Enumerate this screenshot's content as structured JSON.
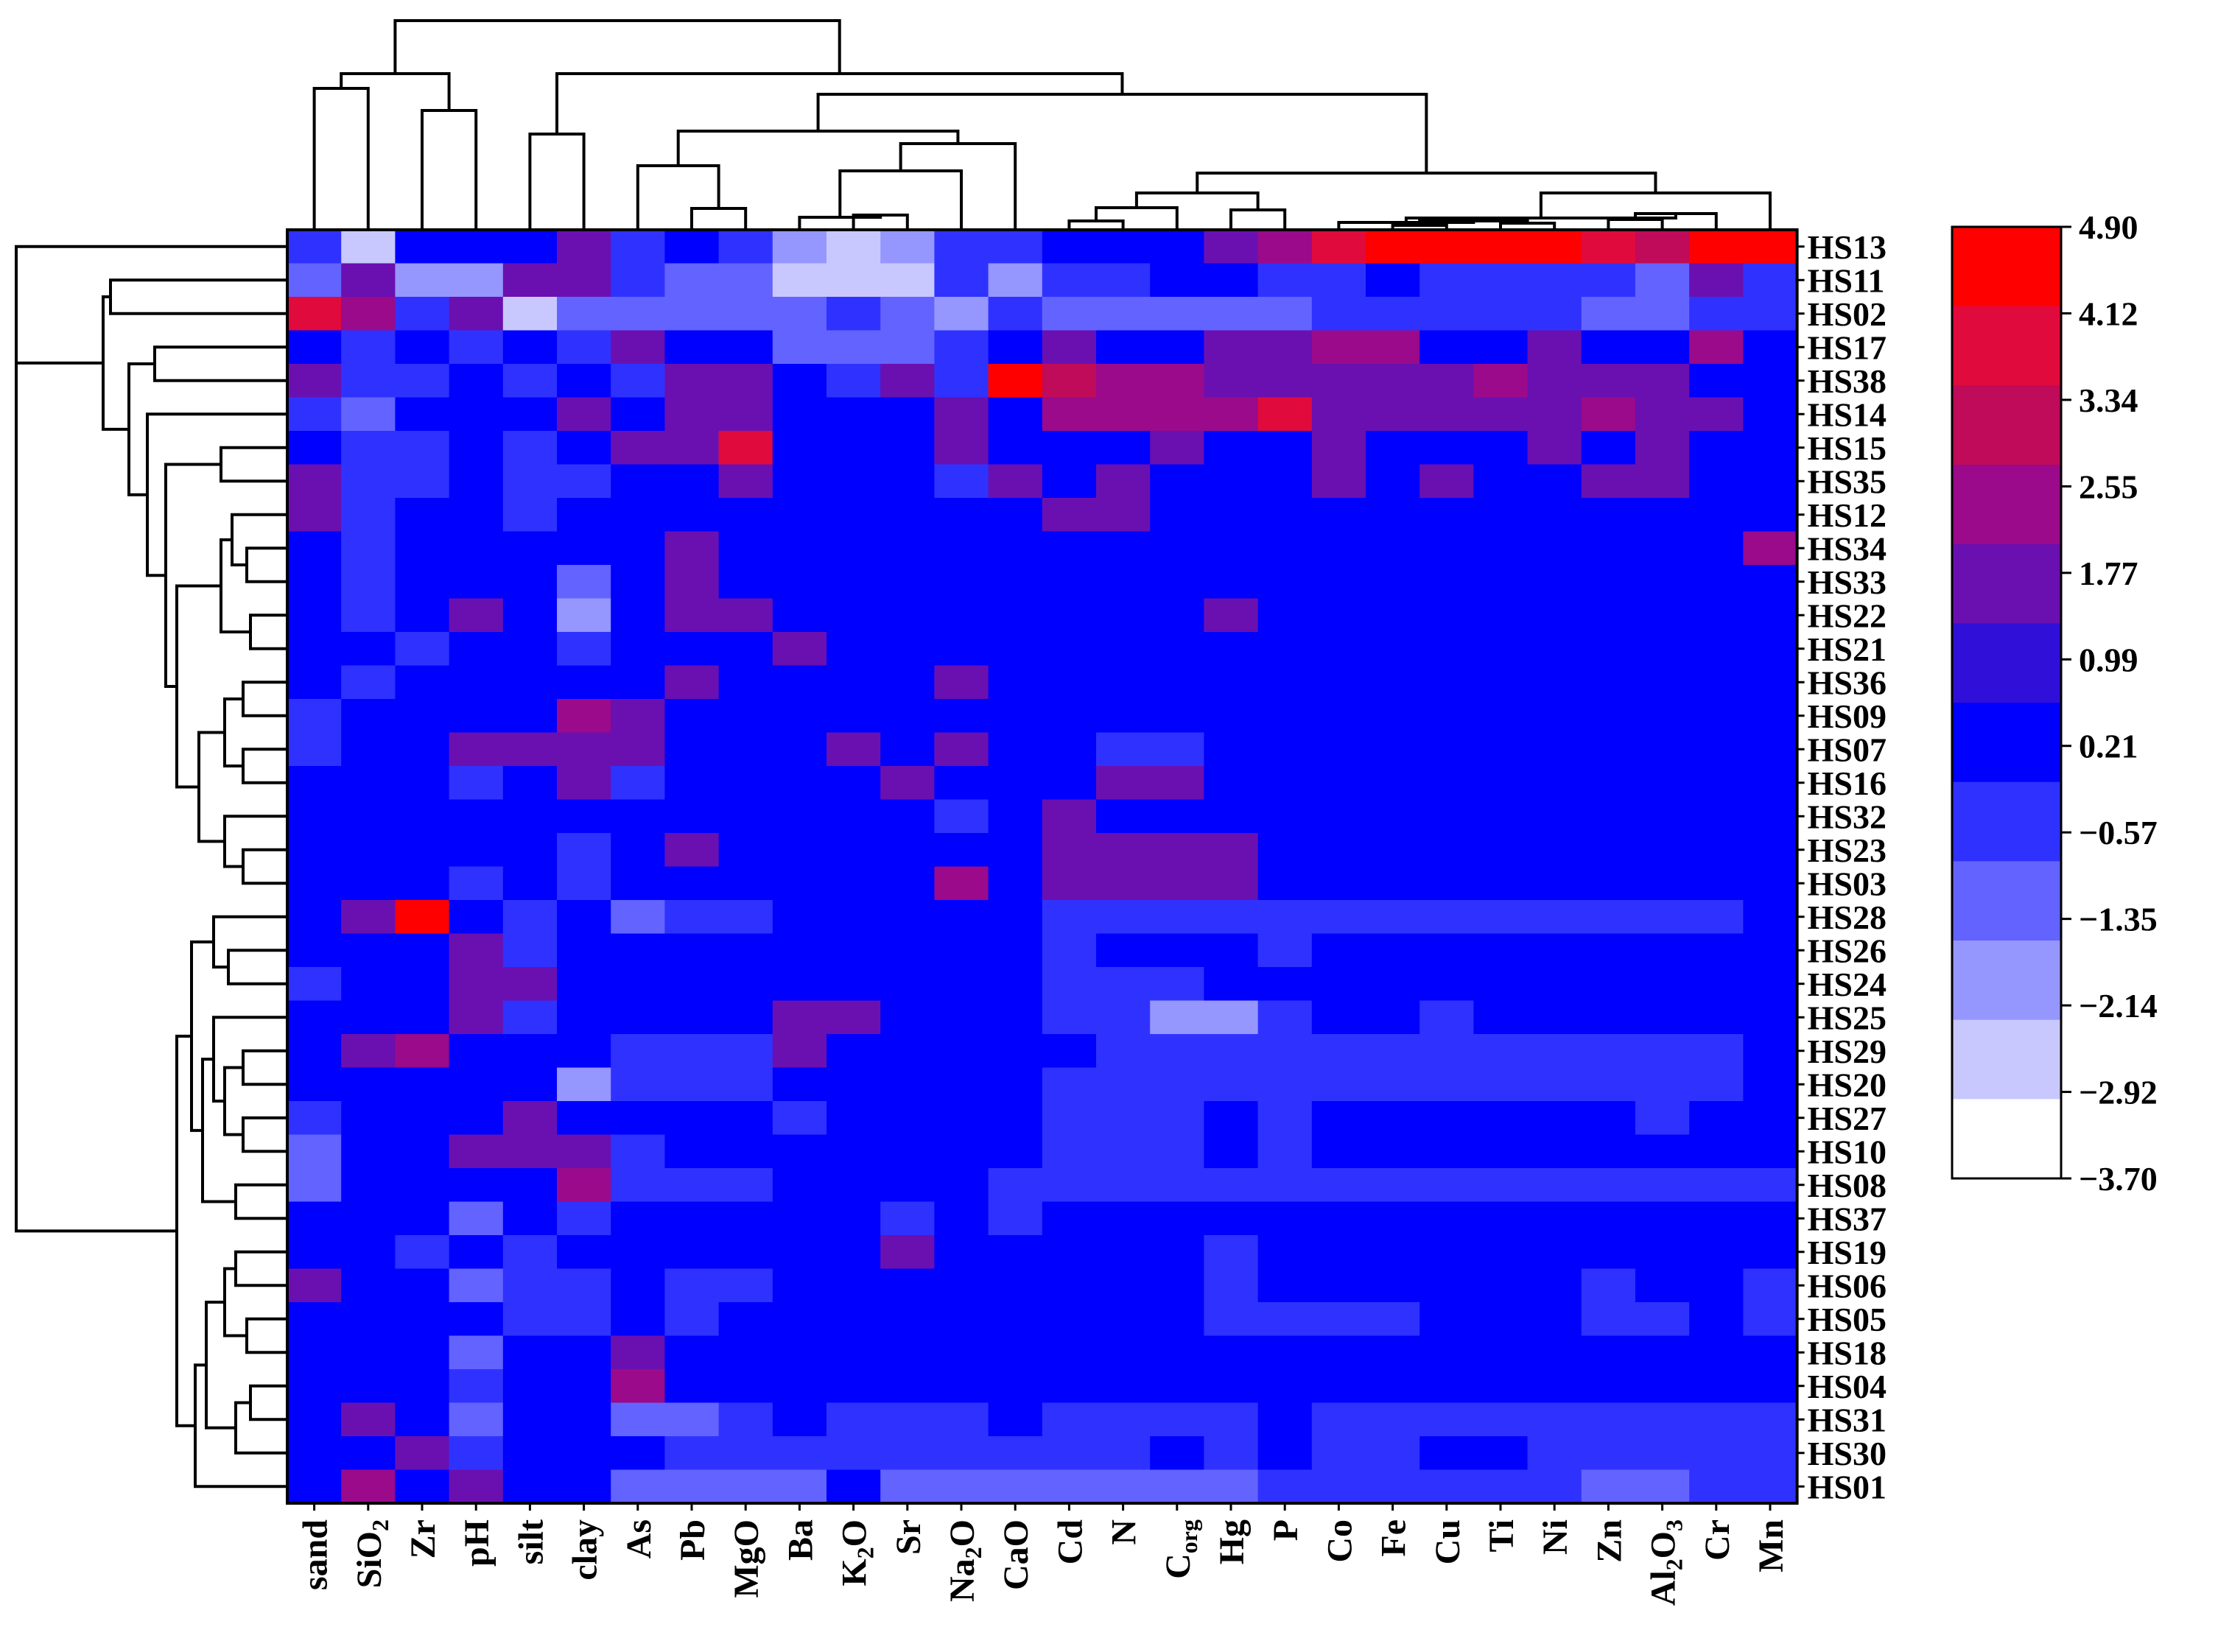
{
  "chart_data": {
    "type": "heatmap",
    "title": "",
    "columns": [
      {
        "label": "sand"
      },
      {
        "label": "SiO",
        "sub": "2"
      },
      {
        "label": "Zr"
      },
      {
        "label": "pH"
      },
      {
        "label": "silt"
      },
      {
        "label": "clay"
      },
      {
        "label": "As"
      },
      {
        "label": "Pb"
      },
      {
        "label": "MgO"
      },
      {
        "label": "Ba"
      },
      {
        "label": "K",
        "sub": "2",
        "tail": "O"
      },
      {
        "label": "Sr"
      },
      {
        "label": "Na",
        "sub": "2",
        "tail": "O"
      },
      {
        "label": "CaO"
      },
      {
        "label": "Cd"
      },
      {
        "label": "N"
      },
      {
        "label": "C",
        "sub": "org"
      },
      {
        "label": "Hg"
      },
      {
        "label": "P"
      },
      {
        "label": "Co"
      },
      {
        "label": "Fe"
      },
      {
        "label": "Cu"
      },
      {
        "label": "Ti"
      },
      {
        "label": "Ni"
      },
      {
        "label": "Zn"
      },
      {
        "label": "Al",
        "sub": "2",
        "tail": "O",
        "sub2": "3"
      },
      {
        "label": "Cr"
      },
      {
        "label": "Mn"
      }
    ],
    "rows": [
      "HS13",
      "HS11",
      "HS02",
      "HS17",
      "HS38",
      "HS14",
      "HS15",
      "HS35",
      "HS12",
      "HS34",
      "HS33",
      "HS22",
      "HS21",
      "HS36",
      "HS09",
      "HS07",
      "HS16",
      "HS32",
      "HS23",
      "HS03",
      "HS28",
      "HS26",
      "HS24",
      "HS25",
      "HS29",
      "HS20",
      "HS27",
      "HS10",
      "HS08",
      "HS37",
      "HS19",
      "HS06",
      "HS05",
      "HS18",
      "HS04",
      "HS31",
      "HS30",
      "HS01"
    ],
    "values": [
      [
        -1,
        -3.7,
        -0.5,
        0.2,
        0.2,
        1.4,
        -1,
        -0.5,
        -1,
        -2.5,
        -3.7,
        -2.5,
        -1,
        -1,
        0.2,
        0.2,
        -0.5,
        1.4,
        2.2,
        3.8,
        4.9,
        4.9,
        4.9,
        4.9,
        3.8,
        3,
        4.9,
        4.9
      ],
      [
        -1.7,
        1.4,
        -2.5,
        -2.5,
        1.4,
        1.4,
        -1,
        -1.7,
        -1.7,
        -3.7,
        -3.7,
        -3.7,
        -1,
        -2.5,
        -1,
        -1,
        -0.5,
        -0.5,
        -1,
        -1,
        -0.5,
        -1,
        -1,
        -1,
        -1,
        -1.7,
        1.4,
        -1
      ],
      [
        3.8,
        2.2,
        -1,
        1.4,
        -3.7,
        -1.7,
        -1.7,
        -1.7,
        -1.7,
        -1.7,
        -1,
        -1.7,
        -2.5,
        -1,
        -1.7,
        -1.7,
        -1.7,
        -1.7,
        -1.7,
        -1,
        -1,
        -1,
        -1,
        -1,
        -1.7,
        -1.7,
        -1,
        -1
      ],
      [
        0.2,
        -1,
        -0.5,
        -1,
        -0.5,
        -1,
        1.4,
        -0.5,
        -0.5,
        -1.7,
        -1.7,
        -1.7,
        -1,
        -0.5,
        1.4,
        0.2,
        0.2,
        1.4,
        1.4,
        2.2,
        2.2,
        0.2,
        0.2,
        1.4,
        0.2,
        -0.5,
        2.2,
        0.2
      ],
      [
        1.4,
        -1,
        -1,
        -0.5,
        -1,
        -0.5,
        -1,
        1.4,
        1.4,
        0.2,
        -1,
        1.4,
        -1,
        4.9,
        3,
        2.2,
        2.2,
        1.4,
        1.4,
        1.4,
        1.4,
        1.4,
        2.2,
        1.4,
        1.4,
        1.4,
        0.2,
        0.2
      ],
      [
        -1,
        -1.7,
        -0.5,
        -0.5,
        0.2,
        1.4,
        0.2,
        1.4,
        1.4,
        0.2,
        -0.5,
        0.2,
        1.4,
        -0.5,
        2.2,
        2.2,
        2.2,
        2.2,
        3.8,
        1.4,
        1.4,
        1.4,
        1.4,
        1.4,
        2.2,
        1.4,
        1.4,
        0.2
      ],
      [
        0.2,
        -1,
        -1,
        -0.5,
        -1,
        -0.5,
        1.4,
        1.4,
        3.8,
        0.2,
        0.2,
        -0.5,
        1.4,
        -0.5,
        0.2,
        -0.5,
        1.4,
        -0.5,
        -0.5,
        1.4,
        0.2,
        0.2,
        0.2,
        1.4,
        0.2,
        1.4,
        0.2,
        0.2
      ],
      [
        1.4,
        -1,
        -1,
        0.2,
        -1,
        -1,
        0.2,
        0.2,
        1.4,
        0.2,
        0.2,
        -0.5,
        -1,
        1.4,
        0.2,
        1.4,
        0.2,
        0.2,
        0.2,
        1.4,
        0.2,
        1.4,
        0.2,
        0.2,
        1.4,
        1.4,
        0.2,
        -0.5
      ],
      [
        1.4,
        -1,
        -0.5,
        0.2,
        -1,
        -0.5,
        0.2,
        0.2,
        0.2,
        0.2,
        0.2,
        -0.5,
        -0.5,
        0.2,
        1.4,
        1.4,
        0.2,
        0.2,
        0.2,
        0.2,
        0.2,
        0.2,
        0.2,
        0.2,
        0.2,
        0.2,
        0.2,
        0.2
      ],
      [
        -0.5,
        -1,
        -0.5,
        0.2,
        0.2,
        -0.5,
        0.2,
        1.4,
        0.2,
        0.2,
        0.2,
        0.2,
        -0.5,
        0.2,
        -0.5,
        0.2,
        -0.5,
        0.2,
        0.2,
        0.2,
        0.2,
        0.2,
        0.2,
        0.2,
        0.2,
        0.2,
        0.2,
        2.2
      ],
      [
        -0.5,
        -1,
        -0.5,
        -0.5,
        0.2,
        -1.7,
        -0.5,
        1.4,
        0.2,
        0.2,
        -0.5,
        -0.5,
        -0.5,
        -0.5,
        -0.5,
        0.2,
        -0.5,
        0.2,
        -0.5,
        0.2,
        0.2,
        0.2,
        0.2,
        0.2,
        0.2,
        0.2,
        -0.5,
        0.2
      ],
      [
        -0.5,
        -1,
        -0.5,
        1.4,
        0.2,
        -2.5,
        0.2,
        1.4,
        1.4,
        0.2,
        -0.5,
        -0.5,
        -0.5,
        -0.5,
        -0.5,
        0.2,
        -0.5,
        1.4,
        -0.5,
        -0.5,
        -0.5,
        -0.5,
        -0.5,
        -0.5,
        0.2,
        0.2,
        -0.5,
        0.2
      ],
      [
        -0.5,
        -0.5,
        -1,
        -0.5,
        0.2,
        -1,
        0.2,
        0.2,
        -0.5,
        1.4,
        0.2,
        0.2,
        -0.5,
        -0.5,
        -0.5,
        0.2,
        0.2,
        0.2,
        -0.5,
        -0.5,
        -0.5,
        -0.5,
        -0.5,
        -0.5,
        -0.5,
        -0.5,
        -0.5,
        0.2
      ],
      [
        -0.5,
        -1,
        -0.5,
        0.2,
        -0.5,
        0.2,
        0.2,
        1.4,
        0.2,
        0.2,
        0.2,
        0.2,
        1.4,
        0.2,
        -0.5,
        0.2,
        0.2,
        0.2,
        0.2,
        -0.5,
        -0.5,
        -0.5,
        -0.5,
        -0.5,
        0.2,
        0.2,
        -0.5,
        -0.5
      ],
      [
        -1,
        -0.5,
        -0.5,
        -0.5,
        0.2,
        2.2,
        1.4,
        0.2,
        -0.5,
        0.2,
        0.2,
        0.2,
        0.2,
        -0.5,
        -0.5,
        0.2,
        -0.5,
        -0.5,
        0.2,
        -0.5,
        -0.5,
        -0.5,
        -0.5,
        -0.5,
        -0.5,
        -0.5,
        -0.5,
        -0.5
      ],
      [
        -1,
        -0.5,
        -0.5,
        1.4,
        1.4,
        1.4,
        1.4,
        0.2,
        0.2,
        0.2,
        1.4,
        0.2,
        1.4,
        0.2,
        -0.5,
        -1,
        -1,
        0.2,
        -0.5,
        -0.5,
        -0.5,
        -0.5,
        -0.5,
        -0.5,
        -0.5,
        0.2,
        -0.5,
        -0.5
      ],
      [
        -0.5,
        -0.5,
        -0.5,
        -1,
        0.2,
        1.4,
        -1,
        -0.5,
        -0.5,
        0.2,
        0.2,
        1.4,
        0.2,
        -0.5,
        0.2,
        1.4,
        1.4,
        0.2,
        0.2,
        -0.5,
        -0.5,
        -0.5,
        -0.5,
        -0.5,
        -0.5,
        -0.5,
        -0.5,
        -0.5
      ],
      [
        -0.5,
        -0.5,
        -0.5,
        -0.5,
        0.2,
        0.2,
        -0.5,
        0.2,
        -0.5,
        0.2,
        -0.5,
        0.2,
        -1,
        0.2,
        1.4,
        0.2,
        0.2,
        0.2,
        0.2,
        -0.5,
        -0.5,
        0.2,
        0.2,
        0.2,
        0.2,
        0.2,
        0.2,
        -0.5
      ],
      [
        -0.5,
        -0.5,
        -0.5,
        -0.5,
        0.2,
        -1,
        -0.5,
        1.4,
        -0.5,
        0.2,
        -0.5,
        -0.5,
        0.2,
        -0.5,
        1.4,
        1.4,
        1.4,
        1.4,
        0.2,
        -0.5,
        -0.5,
        0.2,
        -0.5,
        -0.5,
        0.2,
        0.2,
        -0.5,
        -0.5
      ],
      [
        -0.5,
        -0.5,
        -0.5,
        -1,
        0.2,
        -1,
        0.2,
        0.2,
        0.2,
        0.2,
        0.2,
        0.2,
        2.2,
        0.2,
        1.4,
        1.4,
        1.4,
        1.4,
        0.2,
        -0.5,
        -0.5,
        0.2,
        -0.5,
        -0.5,
        0.2,
        -0.5,
        -0.5,
        -0.5
      ],
      [
        0.2,
        1.4,
        4.9,
        0.2,
        -1,
        -0.5,
        -1.7,
        -1,
        -1,
        0.2,
        -0.5,
        -0.5,
        -0.5,
        -0.5,
        -1,
        -1,
        -1,
        -1,
        -1,
        -1,
        -1,
        -1,
        -1,
        -1,
        -1,
        -1,
        -1,
        -0.5
      ],
      [
        0.2,
        -0.5,
        0.2,
        1.4,
        -1,
        0.2,
        -0.5,
        -0.5,
        0.2,
        -0.5,
        0.2,
        0.2,
        -0.5,
        0.2,
        -1,
        -0.5,
        -0.5,
        0.2,
        -1,
        -0.5,
        -0.5,
        -0.5,
        -0.5,
        -0.5,
        -0.5,
        -0.5,
        -0.5,
        -0.5
      ],
      [
        -1,
        -0.5,
        0.2,
        1.4,
        1.4,
        -0.5,
        0.2,
        0.2,
        0.2,
        -0.5,
        0.2,
        0.2,
        -0.5,
        0.2,
        -1,
        -1,
        -1,
        -0.5,
        -0.5,
        -0.5,
        -0.5,
        -0.5,
        -0.5,
        -0.5,
        -0.5,
        -0.5,
        -0.5,
        -0.5
      ],
      [
        0.2,
        0.2,
        0.2,
        1.4,
        -1,
        -0.5,
        -0.5,
        -0.5,
        -0.5,
        1.4,
        1.4,
        0.2,
        0.2,
        -0.5,
        -1,
        -1,
        -2.5,
        -2.5,
        -1,
        -0.5,
        -0.5,
        -1,
        -0.5,
        -0.5,
        -0.5,
        -0.5,
        -0.5,
        -0.5
      ],
      [
        -0.5,
        1.4,
        2.2,
        -0.5,
        -0.5,
        -0.5,
        -1,
        -1,
        -1,
        1.4,
        0.2,
        0.2,
        -0.5,
        -0.5,
        -0.5,
        -1,
        -1,
        -1,
        -1,
        -1,
        -1,
        -1,
        -1,
        -1,
        -1,
        -1,
        -1,
        -0.5
      ],
      [
        -0.5,
        0.2,
        -0.5,
        0.2,
        0.2,
        -2.5,
        -1,
        -1,
        -1,
        0.2,
        0.2,
        0.2,
        -0.5,
        -0.5,
        -1,
        -1,
        -1,
        -1,
        -1,
        -1,
        -1,
        -1,
        -1,
        -1,
        -1,
        -1,
        -1,
        -0.5
      ],
      [
        -1,
        0.2,
        0.2,
        0.2,
        1.4,
        -0.5,
        -0.5,
        -0.5,
        -0.5,
        -1,
        -0.5,
        -0.5,
        0.2,
        -0.5,
        -1,
        -1,
        -1,
        -0.5,
        -1,
        -0.5,
        -0.5,
        -0.5,
        -0.5,
        -0.5,
        -0.5,
        -1,
        -0.5,
        -0.5
      ],
      [
        -1.7,
        0.2,
        0.2,
        1.4,
        1.4,
        1.4,
        -1,
        -0.5,
        -0.5,
        0.2,
        -0.5,
        -0.5,
        -0.5,
        -0.5,
        -1,
        -1,
        -1,
        -0.5,
        -1,
        -0.5,
        -0.5,
        -0.5,
        -0.5,
        -0.5,
        -0.5,
        -0.5,
        -0.5,
        -0.5
      ],
      [
        -1.7,
        0.2,
        0.2,
        0.2,
        0.2,
        2.2,
        -1,
        -1,
        -1,
        0.2,
        0.2,
        0.2,
        0.2,
        -1,
        -1,
        -1,
        -1,
        -1,
        -1,
        -1,
        -1,
        -1,
        -1,
        -1,
        -1,
        -1,
        -1,
        -1
      ],
      [
        -0.5,
        -0.5,
        -0.5,
        -1.7,
        0.2,
        -1,
        0.2,
        0.2,
        0.2,
        -0.5,
        -0.5,
        -1,
        0.2,
        -1,
        -0.5,
        -0.5,
        0.2,
        -0.5,
        -0.5,
        0.2,
        -0.5,
        -0.5,
        -0.5,
        -0.5,
        -0.5,
        0.2,
        -0.5,
        -0.5
      ],
      [
        0.2,
        -0.5,
        -1,
        -0.5,
        -1,
        -0.5,
        -0.5,
        -0.5,
        -0.5,
        0.2,
        0.2,
        1.4,
        0.2,
        -0.5,
        -0.5,
        -0.5,
        -0.5,
        -1,
        -0.5,
        -0.5,
        -0.5,
        -0.5,
        -0.5,
        -0.5,
        -0.5,
        -0.5,
        -0.5,
        -0.5
      ],
      [
        1.4,
        0.2,
        0.2,
        -1.7,
        -1,
        -1,
        -0.5,
        -1,
        -1,
        -0.5,
        -0.5,
        -0.5,
        -0.5,
        -0.5,
        -0.5,
        -0.5,
        -0.5,
        -1,
        -0.5,
        -0.5,
        -0.5,
        -0.5,
        -0.5,
        -0.5,
        -1,
        -0.5,
        -0.5,
        -1
      ],
      [
        0.2,
        0.2,
        -0.5,
        -0.5,
        -1,
        -1,
        -0.5,
        -1,
        -0.5,
        -0.5,
        -0.5,
        -0.5,
        -0.5,
        -0.5,
        -0.5,
        -0.5,
        -0.5,
        -1,
        -1,
        -1,
        -1,
        -0.5,
        -0.5,
        -0.5,
        -1,
        -1,
        -0.5,
        -1
      ],
      [
        -0.5,
        -0.5,
        -0.5,
        -1.7,
        -0.5,
        -0.5,
        1.4,
        -0.5,
        -0.5,
        0.2,
        0.2,
        -0.5,
        -0.5,
        -0.5,
        -0.5,
        -0.5,
        -0.5,
        -0.5,
        -0.5,
        -0.5,
        -0.5,
        -0.5,
        -0.5,
        -0.5,
        -0.5,
        -0.5,
        -0.5,
        -0.5
      ],
      [
        -0.5,
        -0.5,
        -0.5,
        -1,
        -0.5,
        0.2,
        2.2,
        -0.5,
        -0.5,
        -0.5,
        0.2,
        0.2,
        0.2,
        -0.5,
        -0.5,
        0.2,
        0.2,
        -0.5,
        -0.5,
        -0.5,
        -0.5,
        -0.5,
        -0.5,
        -0.5,
        -0.5,
        -0.5,
        -0.5,
        -0.5
      ],
      [
        -0.5,
        1.4,
        -0.5,
        -1.7,
        -0.5,
        0.2,
        -2.1,
        -2.1,
        -1,
        -0.5,
        -1,
        -1,
        -1,
        -0.5,
        -1,
        -1,
        -1,
        -1,
        -0.5,
        -1,
        -1,
        -1,
        -1,
        -1,
        -1,
        -1,
        -1,
        -1
      ],
      [
        0.2,
        0.2,
        1.4,
        -1,
        -0.5,
        -0.5,
        -0.5,
        -1,
        -1,
        -1,
        -1,
        -1,
        -1,
        -1,
        -1,
        -1,
        -0.5,
        -1,
        -0.5,
        -1,
        -1,
        -0.5,
        -0.5,
        -1,
        -1,
        -1,
        -1,
        -1
      ],
      [
        -0.5,
        2.2,
        -0.5,
        1.4,
        -0.5,
        0.2,
        -1.7,
        -1.7,
        -1.7,
        -1.7,
        -0.5,
        -1.7,
        -1.7,
        -1.7,
        -1.7,
        -1.7,
        -1.7,
        -1.7,
        -1,
        -1,
        -1,
        -1,
        -1,
        -1,
        -1.7,
        -1.7,
        -1,
        -1
      ]
    ],
    "legend": {
      "tick_labels": [
        "4.90",
        "4.12",
        "3.34",
        "2.55",
        "1.77",
        "0.99",
        "0.21",
        "−0.57",
        "−1.35",
        "−2.14",
        "−2.92",
        "−3.70"
      ],
      "colors": [
        "#ff0000",
        "#e10a3c",
        "#c00a5a",
        "#9a0a8a",
        "#6a10b0",
        "#3010d8",
        "#0000ff",
        "#2f32ff",
        "#6363ff",
        "#9696ff",
        "#c8c8ff",
        "#ffffff"
      ],
      "min": -3.7,
      "max": 4.9
    },
    "dendrogram_top": "hierarchical clustering of variables",
    "dendrogram_left": "hierarchical clustering of samples"
  }
}
